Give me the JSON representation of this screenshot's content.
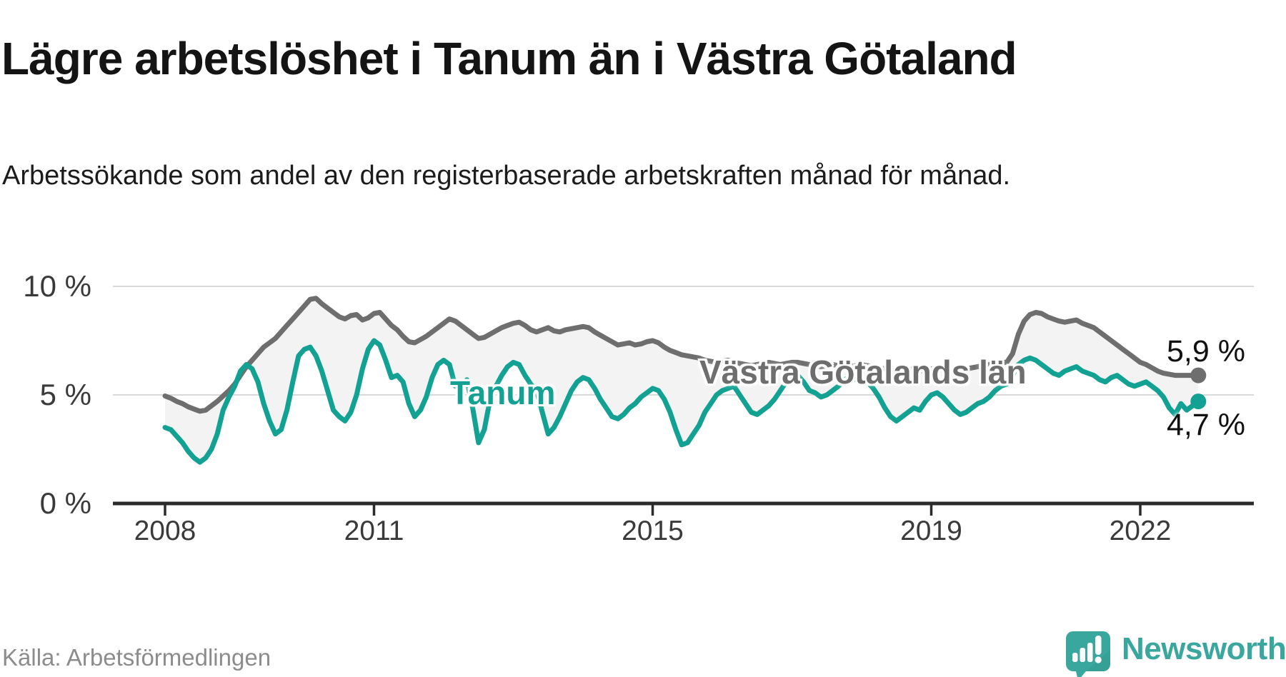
{
  "title": "Lägre arbetslöshet i Tanum än i Västra Götaland",
  "subtitle": "Arbetssökande som andel av den registerbaserade arbetskraften månad för månad.",
  "source": "Källa: Arbetsförmedlingen",
  "branding": {
    "name": "Newsworthy",
    "logo_color": "#3AA79E"
  },
  "colors": {
    "band_fill": "#F3F3F3",
    "gridline": "#D9D9D9",
    "axis": "#2B2B2B",
    "tick": "#2B2B2B",
    "title_text": "#141414",
    "source_text": "#8C8C8C"
  },
  "chart_data": {
    "type": "line",
    "title": "Lägre arbetslöshet i Tanum än i Västra Götaland",
    "subtitle": "Arbetssökande som andel av den registerbaserade arbetskraften månad för månad.",
    "unit": "%",
    "frequency": "monthly",
    "start_year": 2008,
    "start_month": 1,
    "end_label_period": "late 2022",
    "xlim": [
      2007.3,
      2023.6
    ],
    "ylim": [
      0,
      11
    ],
    "grid": "horizontal",
    "x_ticks": [
      2008,
      2011,
      2015,
      2019,
      2022
    ],
    "y_ticks": [
      {
        "value": 10,
        "label": "10 %"
      },
      {
        "value": 5,
        "label": "5 %"
      },
      {
        "value": 0,
        "label": "0 %"
      }
    ],
    "band_fill_between_series": true,
    "series": [
      {
        "name": "Västra Götalands län",
        "color": "#6E6E6E",
        "end_label": "5,9 %",
        "end_value": 5.9,
        "values": [
          4.95,
          4.85,
          4.7,
          4.6,
          4.45,
          4.35,
          4.25,
          4.3,
          4.5,
          4.7,
          4.95,
          5.2,
          5.5,
          5.9,
          6.3,
          6.6,
          6.9,
          7.2,
          7.4,
          7.6,
          7.9,
          8.2,
          8.5,
          8.8,
          9.1,
          9.4,
          9.45,
          9.2,
          9.0,
          8.8,
          8.6,
          8.5,
          8.65,
          8.7,
          8.45,
          8.55,
          8.75,
          8.8,
          8.5,
          8.2,
          8.0,
          7.7,
          7.45,
          7.4,
          7.55,
          7.7,
          7.9,
          8.1,
          8.3,
          8.5,
          8.4,
          8.2,
          8.0,
          7.8,
          7.6,
          7.65,
          7.8,
          7.95,
          8.1,
          8.2,
          8.3,
          8.35,
          8.2,
          8.0,
          7.9,
          8.0,
          8.1,
          7.95,
          7.9,
          8.0,
          8.05,
          8.1,
          8.15,
          8.1,
          7.9,
          7.75,
          7.6,
          7.45,
          7.3,
          7.35,
          7.4,
          7.3,
          7.35,
          7.45,
          7.5,
          7.4,
          7.2,
          7.05,
          6.95,
          6.85,
          6.8,
          6.75,
          6.7,
          6.6,
          6.55,
          6.5,
          6.55,
          6.6,
          6.5,
          6.45,
          6.4,
          6.35,
          6.4,
          6.45,
          6.5,
          6.45,
          6.4,
          6.45,
          6.5,
          6.5,
          6.45,
          6.4,
          6.35,
          6.3,
          6.35,
          6.4,
          6.35,
          6.3,
          6.3,
          6.35,
          6.4,
          6.35,
          6.3,
          6.25,
          6.2,
          6.15,
          6.1,
          6.15,
          6.2,
          6.15,
          6.1,
          6.15,
          6.2,
          6.2,
          6.15,
          6.1,
          6.1,
          6.15,
          6.2,
          6.25,
          6.3,
          6.35,
          6.4,
          6.45,
          6.5,
          6.5,
          6.9,
          7.8,
          8.4,
          8.7,
          8.8,
          8.75,
          8.6,
          8.5,
          8.4,
          8.35,
          8.4,
          8.45,
          8.3,
          8.2,
          8.1,
          7.9,
          7.7,
          7.5,
          7.3,
          7.1,
          6.9,
          6.7,
          6.5,
          6.4,
          6.25,
          6.1,
          6.0,
          5.95,
          5.9,
          5.9,
          5.9,
          5.9,
          5.9
        ]
      },
      {
        "name": "Tanum",
        "color": "#12A192",
        "end_label": "4,7 %",
        "end_value": 4.7,
        "values": [
          3.5,
          3.4,
          3.1,
          2.8,
          2.4,
          2.1,
          1.9,
          2.1,
          2.5,
          3.2,
          4.3,
          4.9,
          5.4,
          6.1,
          6.4,
          6.2,
          5.6,
          4.6,
          3.8,
          3.2,
          3.4,
          4.3,
          5.6,
          6.8,
          7.1,
          7.2,
          6.8,
          6.1,
          5.2,
          4.3,
          4.0,
          3.8,
          4.2,
          5.0,
          6.2,
          7.1,
          7.5,
          7.3,
          6.6,
          5.8,
          5.9,
          5.6,
          4.6,
          4.0,
          4.3,
          4.9,
          5.8,
          6.4,
          6.6,
          6.4,
          5.4,
          5.3,
          5.7,
          4.4,
          2.8,
          3.4,
          4.8,
          5.4,
          5.9,
          6.3,
          6.5,
          6.4,
          5.9,
          5.5,
          5.2,
          4.2,
          3.2,
          3.5,
          4.0,
          4.6,
          5.2,
          5.6,
          5.8,
          5.7,
          5.3,
          4.8,
          4.4,
          4.0,
          3.9,
          4.1,
          4.4,
          4.6,
          4.9,
          5.1,
          5.3,
          5.2,
          4.8,
          4.2,
          3.4,
          2.7,
          2.8,
          3.2,
          3.6,
          4.2,
          4.6,
          5.0,
          5.2,
          5.3,
          5.4,
          5.0,
          4.6,
          4.2,
          4.1,
          4.3,
          4.5,
          4.8,
          5.2,
          5.6,
          5.8,
          5.9,
          5.6,
          5.2,
          5.1,
          4.9,
          5.0,
          5.2,
          5.4,
          5.7,
          5.8,
          5.7,
          5.6,
          5.6,
          5.3,
          4.9,
          4.4,
          4.0,
          3.8,
          4.0,
          4.2,
          4.4,
          4.3,
          4.7,
          5.0,
          5.1,
          4.9,
          4.6,
          4.3,
          4.1,
          4.2,
          4.4,
          4.6,
          4.7,
          4.9,
          5.2,
          5.4,
          5.5,
          5.9,
          6.4,
          6.6,
          6.7,
          6.6,
          6.4,
          6.2,
          6.0,
          5.9,
          6.1,
          6.2,
          6.3,
          6.1,
          6.0,
          5.9,
          5.7,
          5.6,
          5.8,
          5.9,
          5.7,
          5.5,
          5.4,
          5.5,
          5.6,
          5.4,
          5.2,
          4.9,
          4.4,
          4.1,
          4.6,
          4.3,
          4.5,
          4.7
        ]
      }
    ]
  }
}
